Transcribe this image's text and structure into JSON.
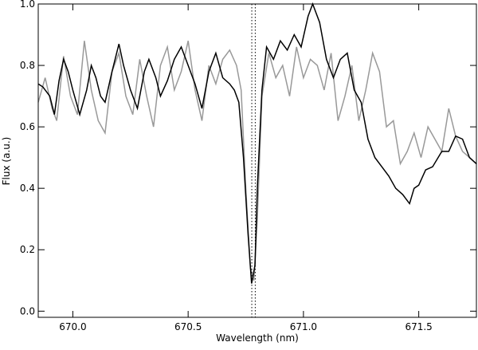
{
  "chart_data": {
    "type": "line",
    "xlabel": "Wavelength (nm)",
    "ylabel": "Flux (a.u.)",
    "xlim": [
      669.85,
      671.75
    ],
    "ylim": [
      -0.02,
      1.0
    ],
    "xticks": [
      {
        "value": 670.0,
        "label": "670.0"
      },
      {
        "value": 670.5,
        "label": "670.5"
      },
      {
        "value": 671.0,
        "label": "671.0"
      },
      {
        "value": 671.5,
        "label": "671.5"
      }
    ],
    "yticks": [
      {
        "value": 0.0,
        "label": "0.0"
      },
      {
        "value": 0.2,
        "label": "0.2"
      },
      {
        "value": 0.4,
        "label": "0.4"
      },
      {
        "value": 0.6,
        "label": "0.6"
      },
      {
        "value": 0.8,
        "label": "0.8"
      },
      {
        "value": 1.0,
        "label": "1.0"
      }
    ],
    "vlines": [
      670.776,
      670.791
    ],
    "series": [
      {
        "color": "#999999",
        "x": [
          669.85,
          669.88,
          669.91,
          669.93,
          669.96,
          669.99,
          670.02,
          670.05,
          670.08,
          670.11,
          670.14,
          670.17,
          670.2,
          670.23,
          670.26,
          670.29,
          670.32,
          670.35,
          670.38,
          670.41,
          670.44,
          670.47,
          670.5,
          670.53,
          670.56,
          670.59,
          670.62,
          670.65,
          670.68,
          670.71,
          670.73,
          670.75,
          670.77,
          670.785,
          670.8,
          670.82,
          670.85,
          670.88,
          670.91,
          670.94,
          670.97,
          671.0,
          671.03,
          671.06,
          671.09,
          671.12,
          671.15,
          671.18,
          671.21,
          671.24,
          671.27,
          671.3,
          671.33,
          671.36,
          671.39,
          671.42,
          671.45,
          671.48,
          671.51,
          671.54,
          671.57,
          671.6,
          671.63,
          671.66,
          671.69,
          671.72,
          671.75
        ],
        "values": [
          0.68,
          0.76,
          0.66,
          0.62,
          0.83,
          0.7,
          0.64,
          0.88,
          0.72,
          0.62,
          0.58,
          0.78,
          0.84,
          0.7,
          0.64,
          0.82,
          0.7,
          0.6,
          0.8,
          0.86,
          0.72,
          0.78,
          0.88,
          0.72,
          0.62,
          0.8,
          0.74,
          0.82,
          0.85,
          0.8,
          0.72,
          0.4,
          0.14,
          0.1,
          0.3,
          0.7,
          0.84,
          0.76,
          0.8,
          0.7,
          0.86,
          0.76,
          0.82,
          0.8,
          0.72,
          0.84,
          0.62,
          0.7,
          0.8,
          0.62,
          0.72,
          0.84,
          0.78,
          0.6,
          0.62,
          0.48,
          0.52,
          0.58,
          0.5,
          0.6,
          0.56,
          0.52,
          0.66,
          0.57,
          0.52,
          0.5,
          0.48
        ]
      },
      {
        "color": "#000000",
        "x": [
          669.85,
          669.87,
          669.9,
          669.92,
          669.94,
          669.96,
          669.98,
          670.0,
          670.03,
          670.06,
          670.08,
          670.1,
          670.12,
          670.14,
          670.17,
          670.2,
          670.22,
          670.25,
          670.28,
          670.31,
          670.33,
          670.36,
          670.38,
          670.41,
          670.44,
          670.47,
          670.5,
          670.53,
          670.56,
          670.59,
          670.62,
          670.65,
          670.68,
          670.7,
          670.72,
          670.74,
          670.76,
          670.775,
          670.79,
          670.8,
          670.82,
          670.84,
          670.87,
          670.9,
          670.93,
          670.96,
          670.99,
          671.02,
          671.04,
          671.07,
          671.1,
          671.13,
          671.16,
          671.19,
          671.22,
          671.25,
          671.28,
          671.31,
          671.34,
          671.37,
          671.4,
          671.43,
          671.46,
          671.48,
          671.5,
          671.53,
          671.56,
          671.6,
          671.63,
          671.66,
          671.69,
          671.72,
          671.75
        ],
        "values": [
          0.74,
          0.73,
          0.7,
          0.64,
          0.75,
          0.82,
          0.78,
          0.72,
          0.64,
          0.72,
          0.8,
          0.76,
          0.7,
          0.68,
          0.78,
          0.87,
          0.8,
          0.72,
          0.66,
          0.78,
          0.82,
          0.76,
          0.7,
          0.75,
          0.82,
          0.86,
          0.8,
          0.74,
          0.66,
          0.78,
          0.84,
          0.76,
          0.74,
          0.72,
          0.68,
          0.5,
          0.25,
          0.09,
          0.15,
          0.4,
          0.72,
          0.86,
          0.82,
          0.88,
          0.85,
          0.9,
          0.86,
          0.96,
          1.0,
          0.94,
          0.82,
          0.76,
          0.82,
          0.84,
          0.72,
          0.68,
          0.56,
          0.5,
          0.47,
          0.44,
          0.4,
          0.38,
          0.35,
          0.4,
          0.41,
          0.46,
          0.47,
          0.52,
          0.52,
          0.57,
          0.56,
          0.5,
          0.48
        ]
      }
    ]
  }
}
